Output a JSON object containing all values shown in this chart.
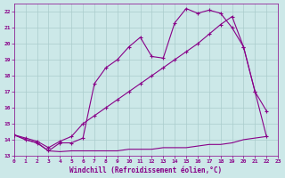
{
  "xlabel": "Windchill (Refroidissement éolien,°C)",
  "bg_color": "#cce8e8",
  "line_color": "#880088",
  "grid_color": "#aacccc",
  "xlim": [
    0,
    23
  ],
  "ylim": [
    13,
    22.5
  ],
  "xticks": [
    0,
    1,
    2,
    3,
    4,
    5,
    6,
    7,
    8,
    9,
    10,
    11,
    12,
    13,
    14,
    15,
    16,
    17,
    18,
    19,
    20,
    21,
    22,
    23
  ],
  "yticks": [
    13,
    14,
    15,
    16,
    17,
    18,
    19,
    20,
    21,
    22
  ],
  "line1_x": [
    0,
    1,
    2,
    3,
    4,
    5,
    6,
    7,
    8,
    9,
    10,
    11,
    12,
    13,
    14,
    15,
    16,
    17,
    18,
    19,
    20,
    21,
    22
  ],
  "line1_y": [
    14.3,
    14.0,
    13.8,
    13.3,
    13.25,
    13.3,
    13.3,
    13.3,
    13.3,
    13.3,
    13.4,
    13.4,
    13.4,
    13.5,
    13.5,
    13.5,
    13.6,
    13.7,
    13.7,
    13.8,
    14.0,
    14.1,
    14.2
  ],
  "line2_x": [
    0,
    1,
    2,
    3,
    4,
    5,
    6,
    7,
    8,
    9,
    10,
    11,
    12,
    13,
    14,
    15,
    16,
    17,
    18,
    19,
    20,
    21,
    22
  ],
  "line2_y": [
    14.3,
    14.0,
    13.8,
    13.3,
    13.8,
    13.8,
    14.1,
    17.5,
    18.5,
    19.0,
    19.8,
    20.4,
    19.2,
    19.1,
    21.3,
    22.2,
    21.9,
    22.1,
    21.9,
    21.0,
    19.8,
    17.0,
    15.8
  ],
  "line3_x": [
    0,
    1,
    2,
    3,
    4,
    5,
    6,
    7,
    8,
    9,
    10,
    11,
    12,
    13,
    14,
    15,
    16,
    17,
    18,
    19,
    20,
    21,
    22
  ],
  "line3_y": [
    14.3,
    14.1,
    13.9,
    13.5,
    13.9,
    14.2,
    15.0,
    15.5,
    16.0,
    16.5,
    17.0,
    17.5,
    18.0,
    18.5,
    19.0,
    19.5,
    20.0,
    20.6,
    21.2,
    21.7,
    19.8,
    17.0,
    14.2
  ]
}
